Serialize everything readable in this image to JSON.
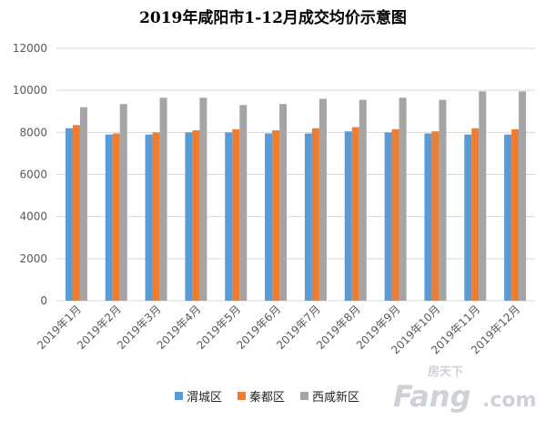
{
  "chart_data": {
    "type": "bar",
    "title": "2019年咸阳市1-12月成交均价示意图",
    "categories": [
      "2019年1月",
      "2019年2月",
      "2019年3月",
      "2019年4月",
      "2019年5月",
      "2019年6月",
      "2019年7月",
      "2019年8月",
      "2019年9月",
      "2019年10月",
      "2019年11月",
      "2019年12月"
    ],
    "series": [
      {
        "name": "渭城区",
        "color": "#5b9bd5",
        "values": [
          8200,
          7900,
          7900,
          8000,
          8000,
          7950,
          7950,
          8050,
          8000,
          7950,
          7900,
          7900
        ]
      },
      {
        "name": "秦都区",
        "color": "#ed7d31",
        "values": [
          8350,
          7950,
          8000,
          8100,
          8150,
          8100,
          8200,
          8250,
          8150,
          8050,
          8200,
          8150
        ]
      },
      {
        "name": "西咸新区",
        "color": "#a5a5a5",
        "values": [
          9200,
          9350,
          9650,
          9650,
          9300,
          9350,
          9600,
          9550,
          9650,
          9550,
          9950,
          9950
        ]
      }
    ],
    "ylim": [
      0,
      12000
    ],
    "yticks": [
      "0",
      "2000",
      "4000",
      "6000",
      "8000",
      "10000",
      "12000"
    ],
    "grid": true,
    "legend_position": "bottom"
  },
  "watermark": {
    "top": "房天下",
    "main": "Fang",
    "suffix": ".com"
  }
}
